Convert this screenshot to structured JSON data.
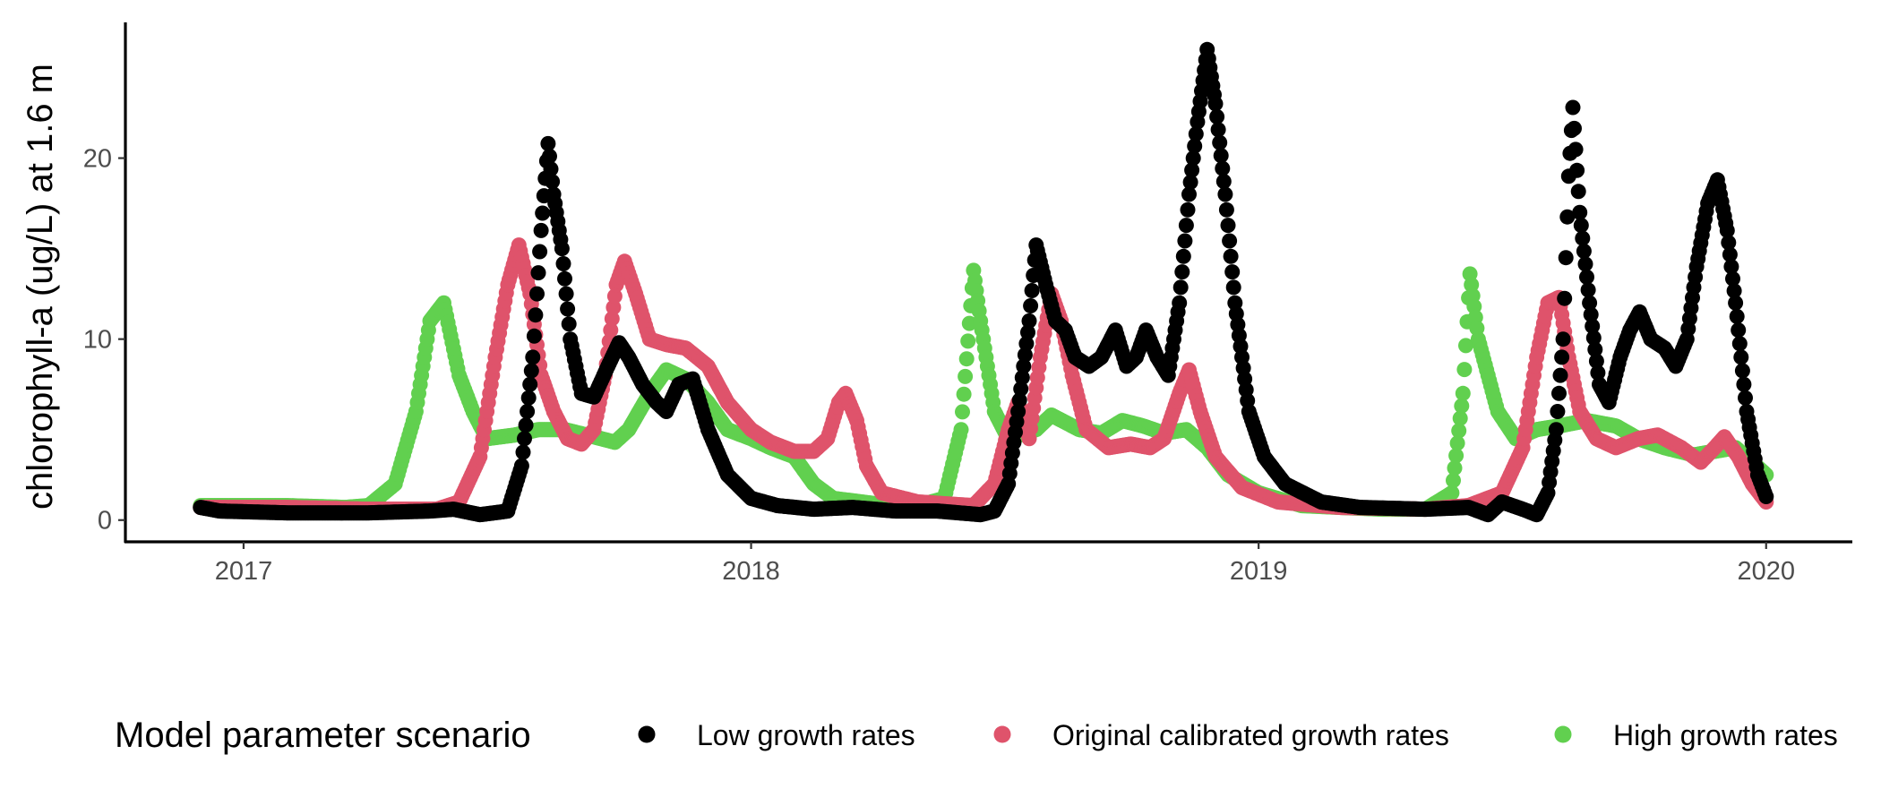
{
  "chart_data": {
    "type": "scatter",
    "title": "",
    "xlabel": "",
    "ylabel": "chlorophyll-a (ug/L) at 1.6 m",
    "x_type": "date",
    "xlim": [
      "2016-10-08",
      "2020-03-03"
    ],
    "ylim": [
      -1.2,
      27.5
    ],
    "x_ticks": [
      {
        "date": "2017-01-01",
        "label": "2017"
      },
      {
        "date": "2018-01-01",
        "label": "2018"
      },
      {
        "date": "2019-01-01",
        "label": "2019"
      },
      {
        "date": "2020-01-01",
        "label": "2020"
      }
    ],
    "y_ticks": [
      0,
      10,
      20
    ],
    "grid": false,
    "legend": {
      "title": "Model parameter scenario",
      "position": "bottom"
    },
    "series": [
      {
        "name": "High growth rates",
        "color": "#61D04F",
        "points": [
          [
            "2016-12-01",
            0.8
          ],
          [
            "2017-02-01",
            0.8
          ],
          [
            "2017-03-15",
            0.7
          ],
          [
            "2017-04-01",
            0.8
          ],
          [
            "2017-04-20",
            2.0
          ],
          [
            "2017-05-05",
            6.0
          ],
          [
            "2017-05-15",
            11.0
          ],
          [
            "2017-05-25",
            12.0
          ],
          [
            "2017-06-05",
            8.0
          ],
          [
            "2017-06-15",
            6.0
          ],
          [
            "2017-06-25",
            4.5
          ],
          [
            "2017-07-15",
            4.7
          ],
          [
            "2017-08-01",
            5.0
          ],
          [
            "2017-08-20",
            5.0
          ],
          [
            "2017-09-10",
            4.6
          ],
          [
            "2017-09-25",
            4.3
          ],
          [
            "2017-10-05",
            5.0
          ],
          [
            "2017-10-20",
            7.0
          ],
          [
            "2017-11-01",
            8.3
          ],
          [
            "2017-11-15",
            7.8
          ],
          [
            "2017-12-01",
            6.5
          ],
          [
            "2017-12-15",
            5.0
          ],
          [
            "2018-01-01",
            4.5
          ],
          [
            "2018-01-15",
            4.0
          ],
          [
            "2018-02-01",
            3.5
          ],
          [
            "2018-02-15",
            2.0
          ],
          [
            "2018-03-01",
            1.2
          ],
          [
            "2018-04-01",
            0.9
          ],
          [
            "2018-05-01",
            0.8
          ],
          [
            "2018-05-20",
            1.2
          ],
          [
            "2018-06-01",
            5.0
          ],
          [
            "2018-06-10",
            13.8
          ],
          [
            "2018-06-15",
            11.0
          ],
          [
            "2018-06-25",
            6.0
          ],
          [
            "2018-07-05",
            4.5
          ],
          [
            "2018-07-25",
            5.0
          ],
          [
            "2018-08-05",
            5.8
          ],
          [
            "2018-08-25",
            5.0
          ],
          [
            "2018-09-10",
            4.8
          ],
          [
            "2018-09-25",
            5.5
          ],
          [
            "2018-10-10",
            5.2
          ],
          [
            "2018-10-25",
            4.8
          ],
          [
            "2018-11-10",
            5.0
          ],
          [
            "2018-11-25",
            4.0
          ],
          [
            "2018-12-10",
            2.5
          ],
          [
            "2019-01-01",
            1.5
          ],
          [
            "2019-02-01",
            0.8
          ],
          [
            "2019-03-01",
            0.7
          ],
          [
            "2019-04-01",
            0.6
          ],
          [
            "2019-05-01",
            0.6
          ],
          [
            "2019-05-20",
            1.5
          ],
          [
            "2019-05-28",
            7.0
          ],
          [
            "2019-06-02",
            13.6
          ],
          [
            "2019-06-08",
            10.0
          ],
          [
            "2019-06-15",
            8.0
          ],
          [
            "2019-06-22",
            6.0
          ],
          [
            "2019-07-05",
            4.5
          ],
          [
            "2019-07-20",
            5.0
          ],
          [
            "2019-08-05",
            5.2
          ],
          [
            "2019-08-25",
            5.5
          ],
          [
            "2019-09-15",
            5.2
          ],
          [
            "2019-10-01",
            4.5
          ],
          [
            "2019-10-20",
            4.0
          ],
          [
            "2019-11-10",
            3.6
          ],
          [
            "2019-11-25",
            3.8
          ],
          [
            "2019-12-10",
            4.0
          ],
          [
            "2019-12-25",
            3.0
          ],
          [
            "2020-01-01",
            2.5
          ]
        ]
      },
      {
        "name": "Original calibrated growth rates",
        "color": "#DF536B",
        "points": [
          [
            "2016-12-01",
            0.7
          ],
          [
            "2017-02-01",
            0.7
          ],
          [
            "2017-04-01",
            0.6
          ],
          [
            "2017-05-20",
            0.6
          ],
          [
            "2017-06-05",
            1.0
          ],
          [
            "2017-06-20",
            3.5
          ],
          [
            "2017-07-01",
            9.0
          ],
          [
            "2017-07-10",
            13.0
          ],
          [
            "2017-07-18",
            15.2
          ],
          [
            "2017-07-26",
            12.5
          ],
          [
            "2017-08-03",
            8.0
          ],
          [
            "2017-08-12",
            6.0
          ],
          [
            "2017-08-22",
            4.5
          ],
          [
            "2017-09-01",
            4.2
          ],
          [
            "2017-09-10",
            5.0
          ],
          [
            "2017-09-18",
            8.0
          ],
          [
            "2017-09-26",
            13.0
          ],
          [
            "2017-10-02",
            14.3
          ],
          [
            "2017-10-10",
            12.5
          ],
          [
            "2017-10-20",
            10.0
          ],
          [
            "2017-11-01",
            9.7
          ],
          [
            "2017-11-15",
            9.5
          ],
          [
            "2017-12-01",
            8.5
          ],
          [
            "2017-12-15",
            6.5
          ],
          [
            "2018-01-01",
            5.0
          ],
          [
            "2018-01-15",
            4.3
          ],
          [
            "2018-02-01",
            3.8
          ],
          [
            "2018-02-15",
            3.8
          ],
          [
            "2018-02-25",
            4.5
          ],
          [
            "2018-03-05",
            6.5
          ],
          [
            "2018-03-10",
            7.0
          ],
          [
            "2018-03-18",
            5.5
          ],
          [
            "2018-03-25",
            3.0
          ],
          [
            "2018-04-05",
            1.5
          ],
          [
            "2018-05-01",
            1.0
          ],
          [
            "2018-06-10",
            0.8
          ],
          [
            "2018-06-25",
            2.0
          ],
          [
            "2018-07-05",
            5.0
          ],
          [
            "2018-07-12",
            6.5
          ],
          [
            "2018-07-20",
            4.5
          ],
          [
            "2018-07-28",
            9.0
          ],
          [
            "2018-08-05",
            12.5
          ],
          [
            "2018-08-12",
            11.0
          ],
          [
            "2018-08-20",
            8.0
          ],
          [
            "2018-08-30",
            5.0
          ],
          [
            "2018-09-15",
            4.0
          ],
          [
            "2018-10-01",
            4.2
          ],
          [
            "2018-10-15",
            4.0
          ],
          [
            "2018-10-25",
            4.5
          ],
          [
            "2018-11-05",
            7.0
          ],
          [
            "2018-11-12",
            8.3
          ],
          [
            "2018-11-20",
            6.0
          ],
          [
            "2018-12-01",
            3.5
          ],
          [
            "2018-12-20",
            1.8
          ],
          [
            "2019-01-15",
            1.0
          ],
          [
            "2019-03-01",
            0.7
          ],
          [
            "2019-05-01",
            0.6
          ],
          [
            "2019-06-01",
            0.8
          ],
          [
            "2019-06-25",
            1.5
          ],
          [
            "2019-07-10",
            4.0
          ],
          [
            "2019-07-20",
            9.0
          ],
          [
            "2019-07-28",
            12.0
          ],
          [
            "2019-08-05",
            12.3
          ],
          [
            "2019-08-12",
            9.0
          ],
          [
            "2019-08-20",
            6.0
          ],
          [
            "2019-09-01",
            4.5
          ],
          [
            "2019-09-15",
            4.0
          ],
          [
            "2019-10-01",
            4.5
          ],
          [
            "2019-10-15",
            4.7
          ],
          [
            "2019-11-01",
            4.0
          ],
          [
            "2019-11-15",
            3.2
          ],
          [
            "2019-11-25",
            4.0
          ],
          [
            "2019-12-02",
            4.6
          ],
          [
            "2019-12-12",
            3.5
          ],
          [
            "2019-12-22",
            2.0
          ],
          [
            "2020-01-01",
            1.0
          ]
        ]
      },
      {
        "name": "Low growth rates",
        "color": "#000000",
        "points": [
          [
            "2016-12-01",
            0.7
          ],
          [
            "2016-12-15",
            0.5
          ],
          [
            "2017-02-01",
            0.4
          ],
          [
            "2017-04-01",
            0.4
          ],
          [
            "2017-05-15",
            0.5
          ],
          [
            "2017-06-01",
            0.6
          ],
          [
            "2017-06-20",
            0.3
          ],
          [
            "2017-07-10",
            0.5
          ],
          [
            "2017-07-20",
            3.0
          ],
          [
            "2017-07-28",
            9.0
          ],
          [
            "2017-08-03",
            16.0
          ],
          [
            "2017-08-08",
            20.8
          ],
          [
            "2017-08-12",
            18.0
          ],
          [
            "2017-08-18",
            15.0
          ],
          [
            "2017-08-24",
            10.0
          ],
          [
            "2017-09-01",
            7.0
          ],
          [
            "2017-09-10",
            6.8
          ],
          [
            "2017-09-20",
            8.5
          ],
          [
            "2017-09-28",
            9.8
          ],
          [
            "2017-10-05",
            9.0
          ],
          [
            "2017-10-15",
            7.5
          ],
          [
            "2017-10-25",
            6.5
          ],
          [
            "2017-11-01",
            6.0
          ],
          [
            "2017-11-10",
            7.5
          ],
          [
            "2017-11-20",
            7.8
          ],
          [
            "2017-12-01",
            5.0
          ],
          [
            "2017-12-15",
            2.5
          ],
          [
            "2018-01-01",
            1.2
          ],
          [
            "2018-01-20",
            0.8
          ],
          [
            "2018-02-15",
            0.6
          ],
          [
            "2018-03-15",
            0.7
          ],
          [
            "2018-04-15",
            0.5
          ],
          [
            "2018-05-15",
            0.5
          ],
          [
            "2018-06-15",
            0.3
          ],
          [
            "2018-06-25",
            0.5
          ],
          [
            "2018-07-05",
            2.0
          ],
          [
            "2018-07-12",
            6.0
          ],
          [
            "2018-07-20",
            11.0
          ],
          [
            "2018-07-25",
            15.2
          ],
          [
            "2018-08-01",
            13.0
          ],
          [
            "2018-08-08",
            11.0
          ],
          [
            "2018-08-15",
            10.5
          ],
          [
            "2018-08-22",
            9.0
          ],
          [
            "2018-09-01",
            8.5
          ],
          [
            "2018-09-10",
            9.0
          ],
          [
            "2018-09-20",
            10.5
          ],
          [
            "2018-09-28",
            8.5
          ],
          [
            "2018-10-05",
            9.0
          ],
          [
            "2018-10-12",
            10.5
          ],
          [
            "2018-10-20",
            9.0
          ],
          [
            "2018-10-28",
            8.0
          ],
          [
            "2018-11-05",
            12.0
          ],
          [
            "2018-11-12",
            18.0
          ],
          [
            "2018-11-18",
            22.0
          ],
          [
            "2018-11-25",
            26.0
          ],
          [
            "2018-12-01",
            23.0
          ],
          [
            "2018-12-08",
            18.0
          ],
          [
            "2018-12-15",
            12.0
          ],
          [
            "2018-12-25",
            6.0
          ],
          [
            "2019-01-05",
            3.5
          ],
          [
            "2019-01-20",
            2.0
          ],
          [
            "2019-02-15",
            1.0
          ],
          [
            "2019-03-15",
            0.7
          ],
          [
            "2019-05-01",
            0.6
          ],
          [
            "2019-06-01",
            0.7
          ],
          [
            "2019-06-15",
            0.3
          ],
          [
            "2019-06-25",
            1.0
          ],
          [
            "2019-07-10",
            0.6
          ],
          [
            "2019-07-20",
            0.3
          ],
          [
            "2019-07-28",
            1.5
          ],
          [
            "2019-08-03",
            5.0
          ],
          [
            "2019-08-08",
            10.0
          ],
          [
            "2019-08-12",
            19.0
          ],
          [
            "2019-08-15",
            22.8
          ],
          [
            "2019-08-20",
            17.0
          ],
          [
            "2019-08-27",
            12.0
          ],
          [
            "2019-09-03",
            7.5
          ],
          [
            "2019-09-10",
            6.5
          ],
          [
            "2019-09-18",
            9.0
          ],
          [
            "2019-09-25",
            10.5
          ],
          [
            "2019-10-02",
            11.5
          ],
          [
            "2019-10-10",
            10.0
          ],
          [
            "2019-10-20",
            9.5
          ],
          [
            "2019-10-28",
            8.5
          ],
          [
            "2019-11-05",
            10.0
          ],
          [
            "2019-11-12",
            14.0
          ],
          [
            "2019-11-20",
            17.5
          ],
          [
            "2019-11-27",
            18.8
          ],
          [
            "2019-12-04",
            16.0
          ],
          [
            "2019-12-10",
            12.0
          ],
          [
            "2019-12-18",
            6.0
          ],
          [
            "2019-12-26",
            2.5
          ],
          [
            "2020-01-01",
            1.3
          ]
        ]
      }
    ]
  },
  "legend_order": [
    "Low growth rates",
    "Original calibrated growth rates",
    "High growth rates"
  ]
}
